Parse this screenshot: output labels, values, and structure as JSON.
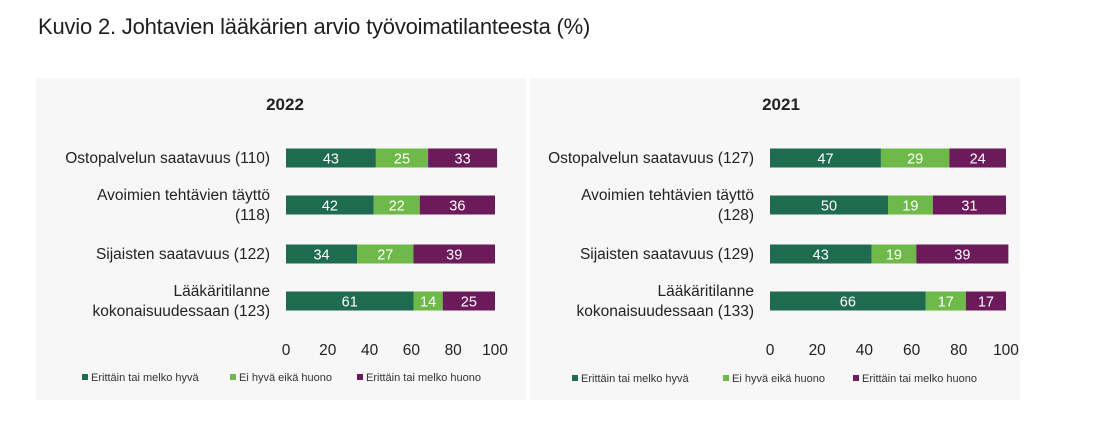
{
  "figure_title": "Kuvio 2. Johtavien lääkärien arvio työvoimatilanteesta (%)",
  "colors": {
    "good": "#1e6b4f",
    "neutral": "#6fb84a",
    "bad": "#6b1a5a"
  },
  "chart_data": [
    {
      "type": "bar",
      "stacked": true,
      "orientation": "horizontal",
      "title": "2022",
      "categories": [
        [
          "Ostopalvelun saatavuus (110)"
        ],
        [
          "Avoimien tehtävien täyttö",
          "(118)"
        ],
        [
          "Sijaisten saatavuus (122)"
        ],
        [
          "Lääkäritilanne",
          "kokonaisuudessaan (123)"
        ]
      ],
      "series": [
        {
          "name": "Erittäin tai melko hyvä",
          "values": [
            43,
            42,
            34,
            61
          ],
          "color": "#1e6b4f"
        },
        {
          "name": "Ei hyvä eikä huono",
          "values": [
            25,
            22,
            27,
            14
          ],
          "color": "#6fb84a"
        },
        {
          "name": "Erittäin tai melko huono",
          "values": [
            33,
            36,
            39,
            25
          ],
          "color": "#6b1a5a"
        }
      ],
      "xlim": [
        0,
        100
      ],
      "xticks": [
        0,
        20,
        40,
        60,
        80,
        100
      ],
      "legend": "bottom",
      "grid": false
    },
    {
      "type": "bar",
      "stacked": true,
      "orientation": "horizontal",
      "title": "2021",
      "categories": [
        [
          "Ostopalvelun saatavuus (127)"
        ],
        [
          "Avoimien tehtävien täyttö",
          "(128)"
        ],
        [
          "Sijaisten saatavuus (129)"
        ],
        [
          "Lääkäritilanne",
          "kokonaisuudessaan (133)"
        ]
      ],
      "series": [
        {
          "name": "Erittäin tai melko hyvä",
          "values": [
            47,
            50,
            43,
            66
          ],
          "color": "#1e6b4f"
        },
        {
          "name": "Ei hyvä eikä huono",
          "values": [
            29,
            19,
            19,
            17
          ],
          "color": "#6fb84a"
        },
        {
          "name": "Erittäin tai melko huono",
          "values": [
            24,
            31,
            39,
            17
          ],
          "color": "#6b1a5a"
        }
      ],
      "xlim": [
        0,
        100
      ],
      "xticks": [
        0,
        20,
        40,
        60,
        80,
        100
      ],
      "legend": "bottom",
      "grid": false
    }
  ]
}
